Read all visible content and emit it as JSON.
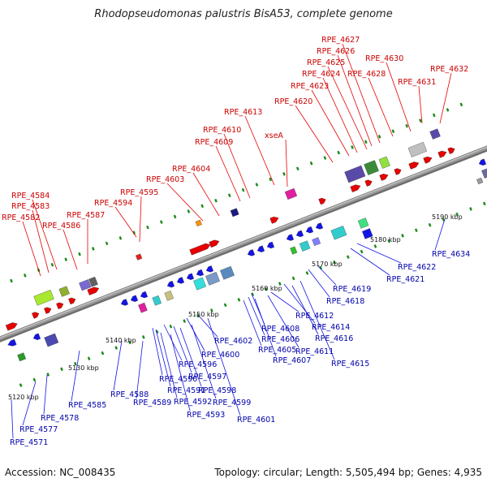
{
  "title": "Rhodopseudomonas palustris BisA53, complete genome",
  "footer": {
    "accession": "Accession: NC_008435",
    "summary": "Topology: circular; Length: 5,505,494 bp; Genes: 4,935"
  },
  "colors": {
    "forward_strand": "#e60000",
    "reverse_strand": "#1414e6",
    "top_label": "#cc0000",
    "bottom_label": "#0000aa",
    "backbone": "#9a9a9a",
    "dots": "#1a8a1a"
  },
  "scale": {
    "unit": "kbp",
    "ticks": [
      5120,
      5130,
      5140,
      5150,
      5160,
      5170,
      5180,
      5190
    ],
    "tick_labels": [
      "5120 kbp",
      "5130 kbp",
      "5140 kbp",
      "5150 kbp",
      "5160 kbp",
      "5170 kbp",
      "5180 kbp",
      "5190 kbp"
    ]
  },
  "top_labels": [
    "RPE_4582",
    "RPE_4583",
    "RPE_4584",
    "RPE_4586",
    "RPE_4587",
    "RPE_4594",
    "RPE_4595",
    "RPE_4603",
    "RPE_4604",
    "RPE_4609",
    "RPE_4610",
    "RPE_4613",
    "xseA",
    "RPE_4620",
    "RPE_4623",
    "RPE_4624",
    "RPE_4625",
    "RPE_4626",
    "RPE_4627",
    "RPE_4628",
    "RPE_4630",
    "RPE_4631",
    "RPE_4632"
  ],
  "bottom_labels": [
    "RPE_4571",
    "RPE_4577",
    "RPE_4578",
    "RPE_4585",
    "RPE_4588",
    "RPE_4589",
    "RPE_4590",
    "RPE_4591",
    "RPE_4592",
    "RPE_4593",
    "RPE_4596",
    "RPE_4597",
    "RPE_4598",
    "RPE_4599",
    "RPE_4600",
    "RPE_4601",
    "RPE_4602",
    "RPE_4605",
    "RPE_4606",
    "RPE_4607",
    "RPE_4608",
    "RPE_4611",
    "RPE_4612",
    "RPE_4614",
    "RPE_4615",
    "RPE_4616",
    "RPE_4618",
    "RPE_4619",
    "RPE_4621",
    "RPE_4622",
    "RPE_4634"
  ]
}
